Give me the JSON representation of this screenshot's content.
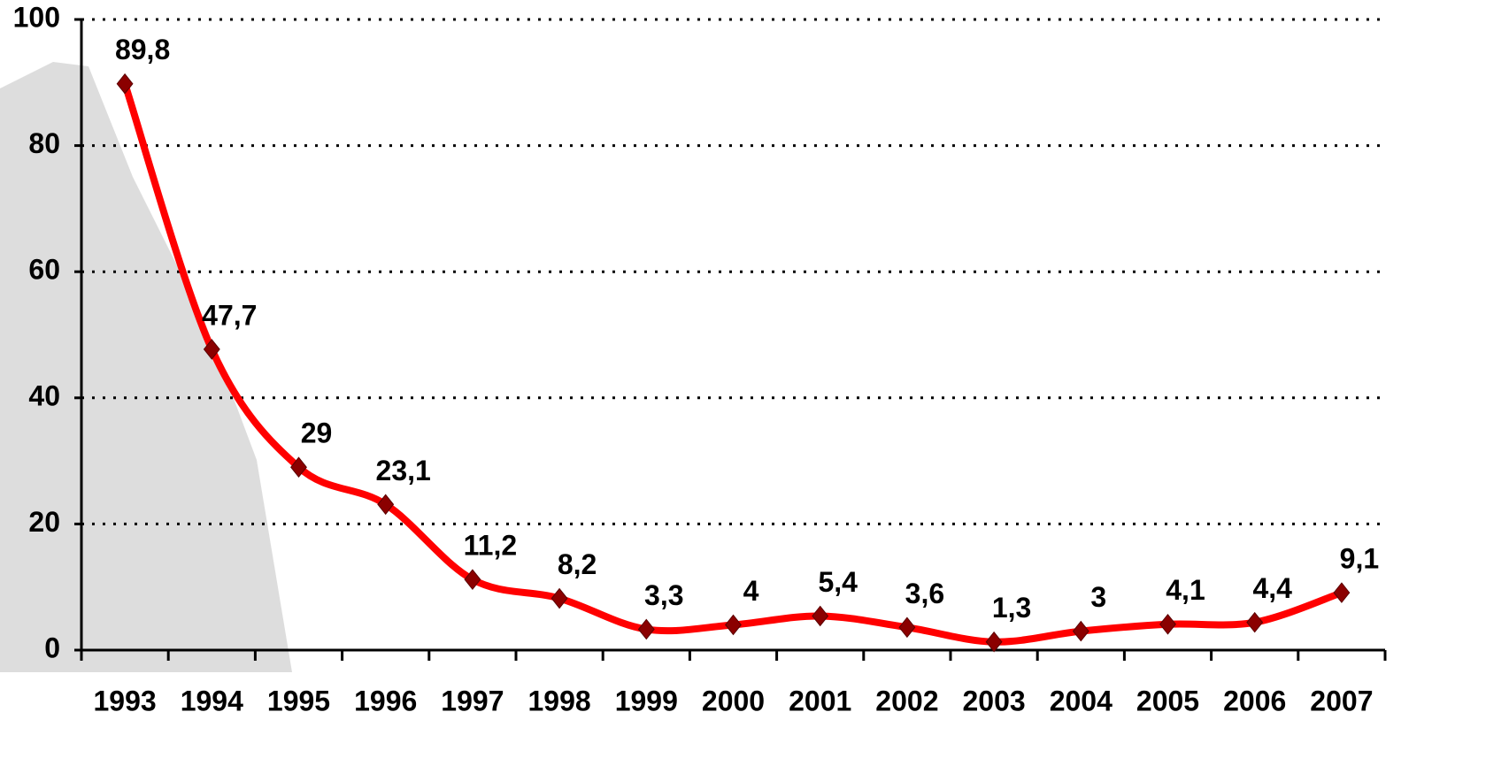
{
  "chart_data": {
    "type": "line",
    "categories": [
      "1993",
      "1994",
      "1995",
      "1996",
      "1997",
      "1998",
      "1999",
      "2000",
      "2001",
      "2002",
      "2003",
      "2004",
      "2005",
      "2006",
      "2007"
    ],
    "series": [
      {
        "color": "#ff0000",
        "marker_color": "#8b0000",
        "values": [
          89.8,
          47.7,
          29,
          23.1,
          11.2,
          8.2,
          3.3,
          4,
          5.4,
          3.6,
          1.3,
          3,
          4.1,
          4.4,
          9.1
        ],
        "value_labels": [
          "89,8",
          "47,7",
          "29",
          "23,1",
          "11,2",
          "8,2",
          "3,3",
          "4",
          "5,4",
          "3,6",
          "1,3",
          "3",
          "4,1",
          "4,4",
          "9,1"
        ]
      }
    ],
    "ylim": [
      0,
      100
    ],
    "yticks": [
      0,
      20,
      40,
      60,
      80,
      100
    ],
    "grid": true,
    "smooth": true
  }
}
